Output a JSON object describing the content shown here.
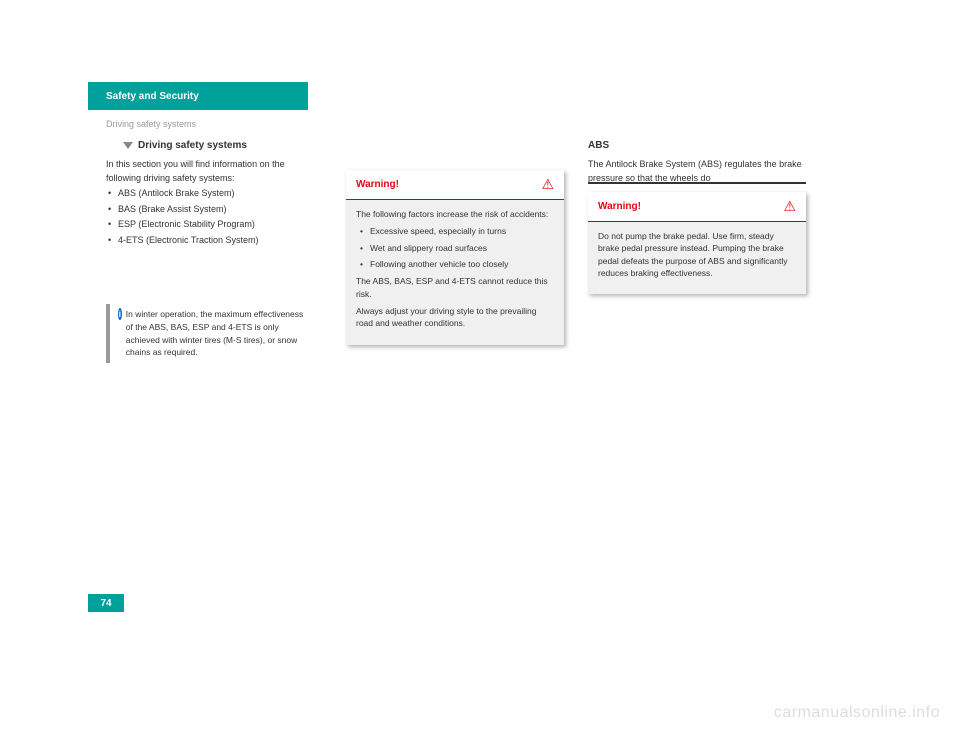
{
  "header": {
    "title": "Safety and Security",
    "subtitle": "Driving safety systems"
  },
  "section": {
    "title": "Driving safety systems"
  },
  "col1": {
    "intro": "In this section you will find information on the following driving safety systems:",
    "systems": [
      "ABS (Antilock Brake System)",
      "BAS (Brake Assist System)",
      "ESP (Electronic Stability Program)",
      "4-ETS (Electronic Traction System)"
    ]
  },
  "infobox": {
    "text": "In winter operation, the maximum effectiveness of the ABS, BAS, ESP and 4-ETS is only achieved with winter tires (M-S tires), or snow chains as required."
  },
  "warning1": {
    "title": "Warning!",
    "p1": "The following factors increase the risk of accidents:",
    "bullets": [
      "Excessive speed, especially in turns",
      "Wet and slippery road surfaces",
      "Following another vehicle too closely"
    ],
    "p2": "The ABS, BAS, ESP and 4-ETS cannot reduce this risk.",
    "p3": "Always adjust your driving style to the prevailing road and weather conditions."
  },
  "col3": {
    "title": "ABS",
    "sub": "The Antilock Brake System (ABS) regulates the brake pressure so that the wheels do"
  },
  "warning2": {
    "title": "Warning!",
    "p1": "Do not pump the brake pedal. Use firm, steady brake pedal pressure instead. Pumping the brake pedal defeats the purpose of ABS and significantly reduces braking effectiveness."
  },
  "page_number": "74",
  "watermark": "carmanualsonline.info"
}
